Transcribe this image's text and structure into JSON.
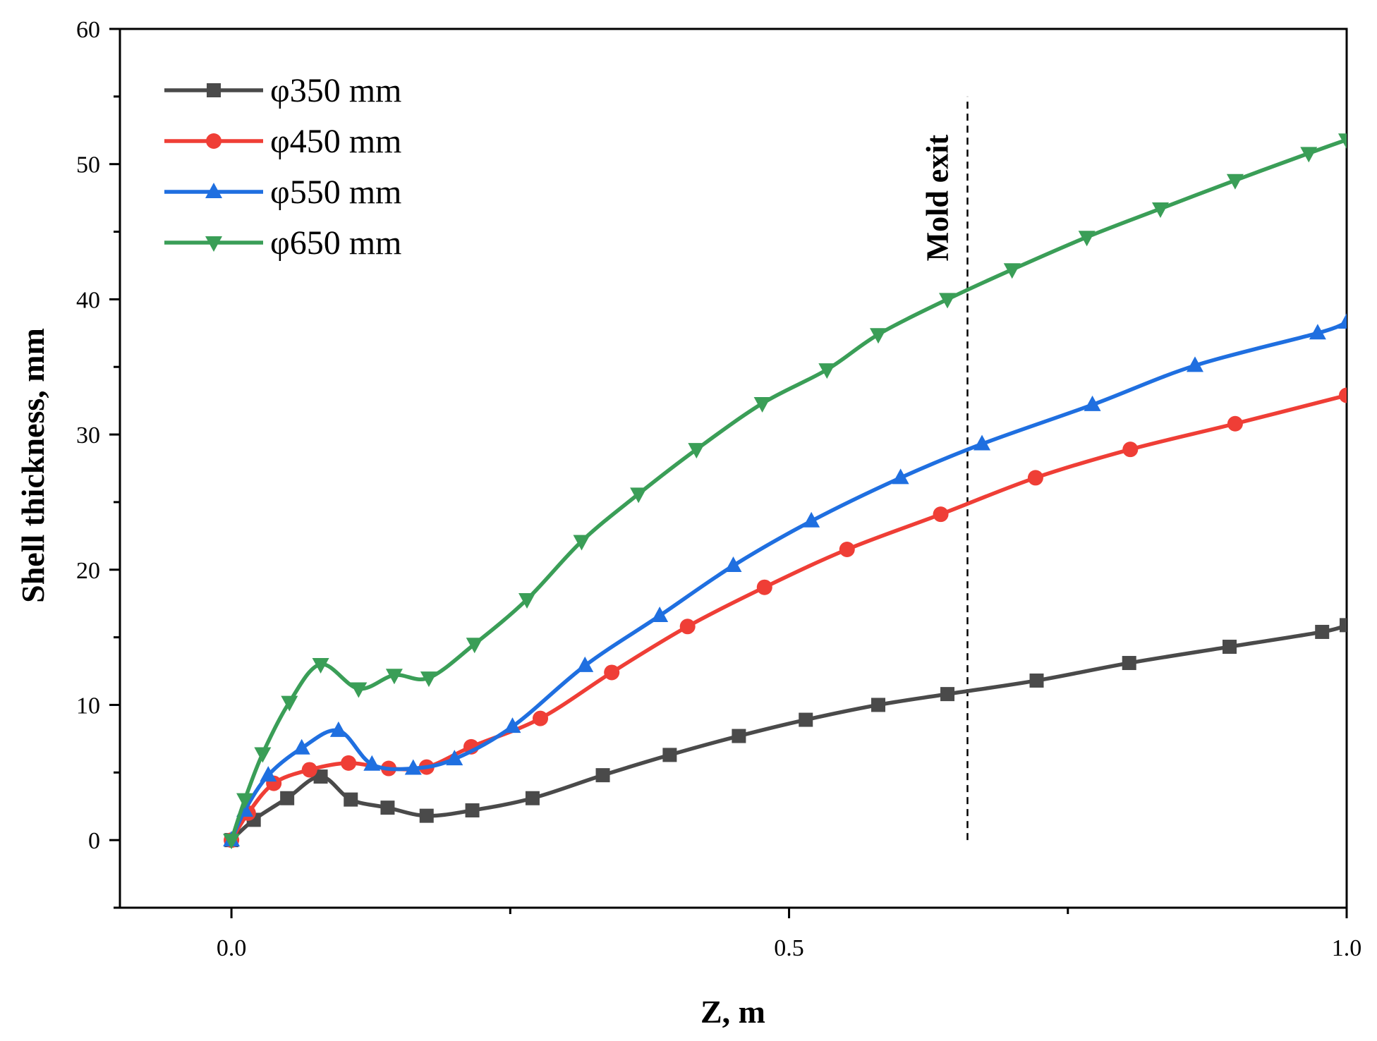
{
  "chart_data": {
    "type": "line",
    "title": "",
    "xlabel": "Z, m",
    "ylabel": "Shell thickness, mm",
    "xlim": [
      -0.1,
      1.0
    ],
    "ylim": [
      -5,
      60
    ],
    "xticks": [
      0.0,
      0.5,
      1.0
    ],
    "xtick_labels": [
      "0.0",
      "0.5",
      "1.0"
    ],
    "xminor": [
      0.25,
      0.75
    ],
    "yticks": [
      0,
      10,
      20,
      30,
      40,
      50,
      60
    ],
    "ytick_labels": [
      "0",
      "10",
      "20",
      "30",
      "40",
      "50",
      "60"
    ],
    "yminor": [
      -5,
      5,
      15,
      25,
      35,
      45,
      55
    ],
    "grid": false,
    "legend_position": "top-left",
    "annotation": {
      "text": "Mold exit",
      "x": 0.66,
      "y_from": 0,
      "y_to": 55
    },
    "series": [
      {
        "name": "φ350 mm",
        "color": "#4a4a4a",
        "marker": "square",
        "x": [
          0.0,
          0.02,
          0.05,
          0.08,
          0.107,
          0.14,
          0.175,
          0.216,
          0.27,
          0.333,
          0.393,
          0.455,
          0.515,
          0.58,
          0.642,
          0.722,
          0.805,
          0.895,
          0.978,
          1.0
        ],
        "y": [
          0.0,
          1.5,
          3.1,
          4.7,
          3.0,
          2.4,
          1.8,
          2.2,
          3.1,
          4.8,
          6.3,
          7.7,
          8.9,
          10.0,
          10.8,
          11.8,
          13.1,
          14.3,
          15.4,
          15.9
        ]
      },
      {
        "name": "φ450 mm",
        "color": "#ef3e36",
        "marker": "circle",
        "x": [
          0.0,
          0.015,
          0.038,
          0.07,
          0.105,
          0.141,
          0.175,
          0.215,
          0.277,
          0.341,
          0.409,
          0.478,
          0.552,
          0.636,
          0.721,
          0.806,
          0.9,
          1.0
        ],
        "y": [
          0.0,
          2.0,
          4.2,
          5.2,
          5.7,
          5.3,
          5.4,
          6.9,
          9.0,
          12.4,
          15.8,
          18.7,
          21.5,
          24.1,
          26.8,
          28.9,
          30.8,
          32.9
        ]
      },
      {
        "name": "φ550 mm",
        "color": "#1f6fe0",
        "marker": "triangle-up",
        "x": [
          0.0,
          0.012,
          0.033,
          0.063,
          0.096,
          0.126,
          0.163,
          0.2,
          0.252,
          0.317,
          0.384,
          0.45,
          0.52,
          0.6,
          0.673,
          0.772,
          0.864,
          0.974,
          1.0
        ],
        "y": [
          0.0,
          2.2,
          4.8,
          6.8,
          8.1,
          5.6,
          5.3,
          6.0,
          8.4,
          12.9,
          16.6,
          20.3,
          23.6,
          26.8,
          29.3,
          32.2,
          35.1,
          37.5,
          38.3
        ]
      },
      {
        "name": "φ650 mm",
        "color": "#3a9e57",
        "marker": "triangle-down",
        "x": [
          0.0,
          0.012,
          0.028,
          0.052,
          0.08,
          0.114,
          0.146,
          0.177,
          0.218,
          0.265,
          0.314,
          0.365,
          0.417,
          0.476,
          0.534,
          0.58,
          0.642,
          0.7,
          0.767,
          0.833,
          0.9,
          0.966,
          1.0
        ],
        "y": [
          0.0,
          3.0,
          6.4,
          10.2,
          13.0,
          11.2,
          12.2,
          12.0,
          14.5,
          17.8,
          22.1,
          25.6,
          28.9,
          32.3,
          34.8,
          37.4,
          40.0,
          42.2,
          44.6,
          46.7,
          48.8,
          50.8,
          51.8
        ]
      }
    ]
  }
}
